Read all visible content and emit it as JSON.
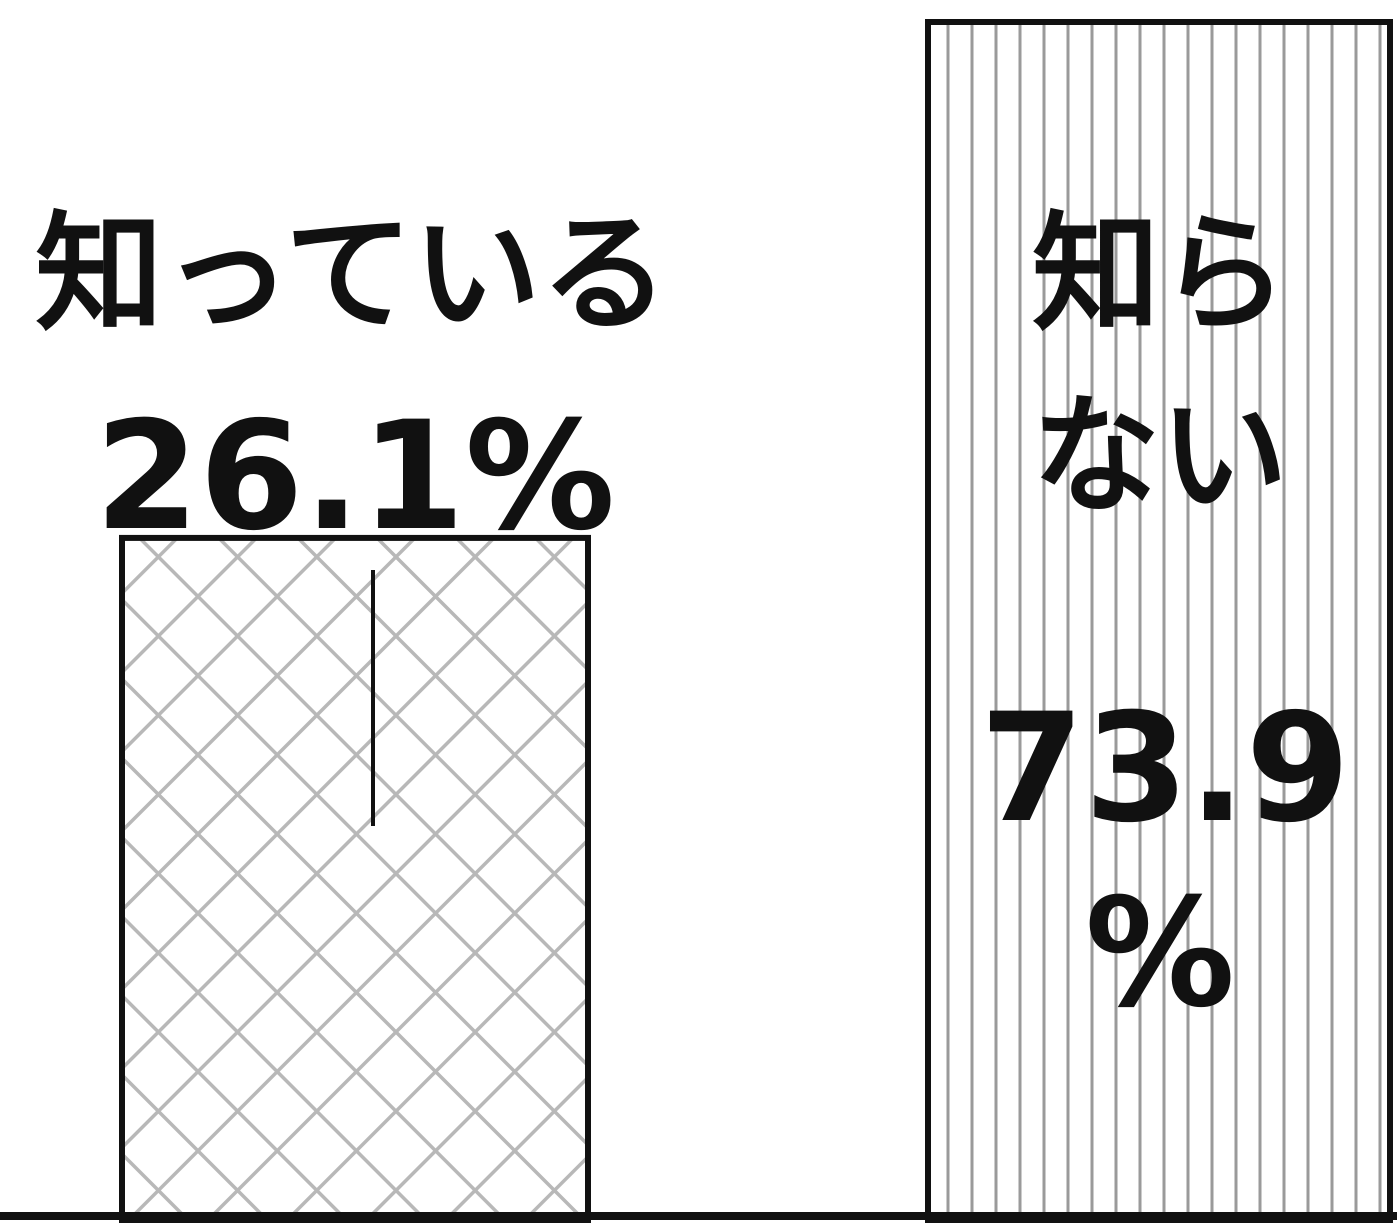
{
  "chart_data": {
    "type": "bar",
    "categories": [
      "知っている",
      "知らない"
    ],
    "values": [
      26.1,
      73.9
    ],
    "unit": "%",
    "ylim": [
      0,
      75
    ],
    "grid": false,
    "legend": "none",
    "labels": [
      {
        "name": "知っている",
        "value": "26.1%"
      },
      {
        "name_lines": [
          "知ら",
          "ない"
        ],
        "value_lines": [
          "73.9",
          "%"
        ]
      }
    ],
    "patterns": [
      "crosshatch",
      "vertical-lines"
    ],
    "colors": {
      "bar_edge": "#111111",
      "pattern": "#b8b8b8",
      "text": "#111111"
    }
  }
}
